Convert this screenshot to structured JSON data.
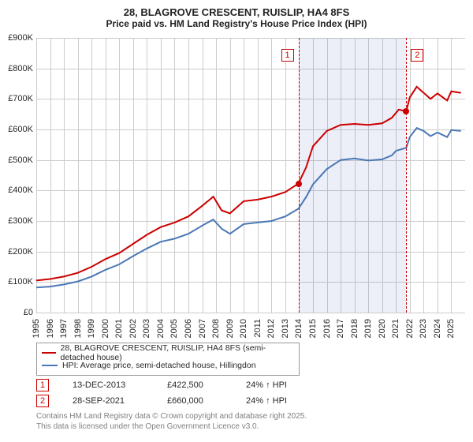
{
  "title": {
    "line1": "28, BLAGROVE CRESCENT, RUISLIP, HA4 8FS",
    "line2": "Price paid vs. HM Land Registry's House Price Index (HPI)"
  },
  "chart": {
    "type": "line",
    "x_range": [
      1995,
      2026
    ],
    "y_range": [
      0,
      900000
    ],
    "y_ticks": [
      0,
      100000,
      200000,
      300000,
      400000,
      500000,
      600000,
      700000,
      800000,
      900000
    ],
    "y_tick_labels": [
      "£0",
      "£100K",
      "£200K",
      "£300K",
      "£400K",
      "£500K",
      "£600K",
      "£700K",
      "£800K",
      "£900K"
    ],
    "x_ticks": [
      1995,
      1996,
      1997,
      1998,
      1999,
      2000,
      2001,
      2002,
      2003,
      2004,
      2005,
      2006,
      2007,
      2008,
      2009,
      2010,
      2011,
      2012,
      2013,
      2014,
      2015,
      2016,
      2017,
      2018,
      2019,
      2020,
      2021,
      2022,
      2023,
      2024,
      2025
    ],
    "grid_color": "#cccccc",
    "background_color": "#ffffff",
    "shaded_region": {
      "start": 2013.95,
      "end": 2021.75,
      "color": "rgba(70,100,180,0.10)"
    },
    "markers": [
      {
        "id": "1",
        "x": 2013.95
      },
      {
        "id": "2",
        "x": 2021.75
      }
    ],
    "series": [
      {
        "name": "price_paid",
        "color": "#cc0000",
        "line_width": 2,
        "legend": "28, BLAGROVE CRESCENT, RUISLIP, HA4 8FS (semi-detached house)",
        "data": [
          [
            1995,
            105000
          ],
          [
            1996,
            110000
          ],
          [
            1997,
            118000
          ],
          [
            1998,
            130000
          ],
          [
            1999,
            150000
          ],
          [
            2000,
            175000
          ],
          [
            2001,
            195000
          ],
          [
            2002,
            225000
          ],
          [
            2003,
            255000
          ],
          [
            2004,
            280000
          ],
          [
            2005,
            295000
          ],
          [
            2006,
            315000
          ],
          [
            2007,
            350000
          ],
          [
            2007.8,
            380000
          ],
          [
            2008.4,
            335000
          ],
          [
            2009,
            325000
          ],
          [
            2010,
            365000
          ],
          [
            2011,
            370000
          ],
          [
            2012,
            380000
          ],
          [
            2013,
            395000
          ],
          [
            2013.95,
            422500
          ],
          [
            2014.5,
            475000
          ],
          [
            2015,
            545000
          ],
          [
            2016,
            595000
          ],
          [
            2017,
            615000
          ],
          [
            2018,
            618000
          ],
          [
            2019,
            615000
          ],
          [
            2020,
            620000
          ],
          [
            2020.7,
            638000
          ],
          [
            2021.2,
            665000
          ],
          [
            2021.75,
            660000
          ],
          [
            2022,
            705000
          ],
          [
            2022.5,
            740000
          ],
          [
            2023,
            720000
          ],
          [
            2023.5,
            700000
          ],
          [
            2024,
            718000
          ],
          [
            2024.7,
            695000
          ],
          [
            2025,
            725000
          ],
          [
            2025.7,
            720000
          ]
        ],
        "sale_points": [
          {
            "x": 2013.95,
            "y": 422500
          },
          {
            "x": 2021.75,
            "y": 660000
          }
        ]
      },
      {
        "name": "hpi",
        "color": "#4a78b5",
        "line_width": 2,
        "legend": "HPI: Average price, semi-detached house, Hillingdon",
        "data": [
          [
            1995,
            82000
          ],
          [
            1996,
            85000
          ],
          [
            1997,
            92000
          ],
          [
            1998,
            102000
          ],
          [
            1999,
            118000
          ],
          [
            2000,
            140000
          ],
          [
            2001,
            158000
          ],
          [
            2002,
            185000
          ],
          [
            2003,
            210000
          ],
          [
            2004,
            232000
          ],
          [
            2005,
            242000
          ],
          [
            2006,
            258000
          ],
          [
            2007,
            285000
          ],
          [
            2007.8,
            305000
          ],
          [
            2008.4,
            275000
          ],
          [
            2009,
            258000
          ],
          [
            2010,
            290000
          ],
          [
            2011,
            295000
          ],
          [
            2012,
            300000
          ],
          [
            2013,
            315000
          ],
          [
            2013.95,
            340000
          ],
          [
            2014.5,
            378000
          ],
          [
            2015,
            420000
          ],
          [
            2016,
            470000
          ],
          [
            2017,
            500000
          ],
          [
            2018,
            505000
          ],
          [
            2019,
            498000
          ],
          [
            2020,
            502000
          ],
          [
            2020.7,
            515000
          ],
          [
            2021,
            530000
          ],
          [
            2021.75,
            540000
          ],
          [
            2022,
            575000
          ],
          [
            2022.5,
            605000
          ],
          [
            2023,
            595000
          ],
          [
            2023.5,
            578000
          ],
          [
            2024,
            590000
          ],
          [
            2024.7,
            575000
          ],
          [
            2025,
            598000
          ],
          [
            2025.7,
            595000
          ]
        ]
      }
    ]
  },
  "legend": {
    "row1": "28, BLAGROVE CRESCENT, RUISLIP, HA4 8FS (semi-detached house)",
    "row2": "HPI: Average price, semi-detached house, Hillingdon"
  },
  "sales": [
    {
      "id": "1",
      "date": "13-DEC-2013",
      "price": "£422,500",
      "delta": "24% ↑ HPI"
    },
    {
      "id": "2",
      "date": "28-SEP-2021",
      "price": "£660,000",
      "delta": "24% ↑ HPI"
    }
  ],
  "footer": {
    "line1": "Contains HM Land Registry data © Crown copyright and database right 2025.",
    "line2": "This data is licensed under the Open Government Licence v3.0."
  },
  "colors": {
    "red": "#cc0000",
    "blue": "#4a78b5",
    "grid": "#cccccc",
    "text": "#282828",
    "muted": "#808080"
  }
}
